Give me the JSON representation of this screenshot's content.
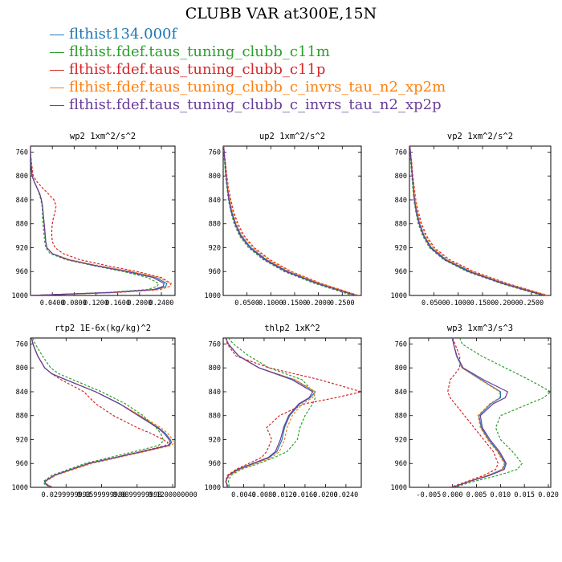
{
  "title": "CLUBB VAR at300E,15N",
  "series_legend": [
    {
      "name": "flthist134.000f",
      "color": "#1f77b4"
    },
    {
      "name": "flthist.fdef.taus_tuning_clubb_c11m",
      "color": "#2ca02c"
    },
    {
      "name": "flthist.fdef.taus_tuning_clubb_c11p",
      "color": "#d62728"
    },
    {
      "name": "flthist.fdef.taus_tuning_clubb_c_invrs_tau_n2_xp2m",
      "color": "#ff7f0e"
    },
    {
      "name": "flthist.fdef.taus_tuning_clubb_c_invrs_tau_n2_xp2p",
      "color": "#6a3d9a"
    }
  ],
  "chart_data": [
    {
      "type": "line",
      "title": "wp2  1xm^2/s^2",
      "ylim": [
        1000,
        750
      ],
      "y_ticks": [
        "760",
        "800",
        "840",
        "880",
        "920",
        "960",
        "1000"
      ],
      "xlim": [
        0,
        0.265
      ],
      "x_ticks": [
        0.04,
        0.08,
        0.12,
        0.16,
        0.2,
        0.24
      ],
      "x_tick_labels": [
        "0.0400",
        "0.0800",
        "0.1200",
        "0.1600",
        "0.2000",
        "0.2400"
      ],
      "y": [
        750,
        760,
        780,
        800,
        810,
        820,
        830,
        840,
        850,
        860,
        870,
        880,
        890,
        900,
        910,
        920,
        930,
        940,
        950,
        960,
        970,
        980,
        985,
        990,
        995,
        1000
      ],
      "series": [
        {
          "name": "flthist134.000f",
          "style": "solid",
          "x": [
            0.0,
            0.0,
            0.001,
            0.003,
            0.007,
            0.012,
            0.017,
            0.02,
            0.022,
            0.023,
            0.024,
            0.025,
            0.026,
            0.027,
            0.028,
            0.03,
            0.04,
            0.07,
            0.12,
            0.18,
            0.23,
            0.25,
            0.248,
            0.23,
            0.15,
            0.0
          ]
        },
        {
          "name": "flthist.fdef.taus_tuning_clubb_c11m",
          "style": "dashed",
          "x": [
            0.0,
            0.0,
            0.001,
            0.003,
            0.007,
            0.012,
            0.016,
            0.019,
            0.021,
            0.022,
            0.022,
            0.023,
            0.024,
            0.025,
            0.026,
            0.028,
            0.036,
            0.065,
            0.115,
            0.17,
            0.215,
            0.235,
            0.232,
            0.215,
            0.14,
            0.0
          ]
        },
        {
          "name": "flthist.fdef.taus_tuning_clubb_c11p",
          "style": "dashed",
          "x": [
            0.0,
            0.0,
            0.002,
            0.005,
            0.012,
            0.022,
            0.033,
            0.043,
            0.047,
            0.045,
            0.042,
            0.04,
            0.039,
            0.039,
            0.04,
            0.045,
            0.06,
            0.09,
            0.14,
            0.195,
            0.24,
            0.258,
            0.255,
            0.238,
            0.16,
            0.0
          ]
        },
        {
          "name": "flthist.fdef.taus_tuning_clubb_c_invrs_tau_n2_xp2m",
          "style": "dashed",
          "x": [
            0.0,
            0.0,
            0.001,
            0.003,
            0.007,
            0.012,
            0.017,
            0.02,
            0.022,
            0.023,
            0.024,
            0.025,
            0.026,
            0.027,
            0.028,
            0.03,
            0.04,
            0.072,
            0.125,
            0.185,
            0.235,
            0.257,
            0.255,
            0.236,
            0.155,
            0.0
          ]
        },
        {
          "name": "flthist.fdef.taus_tuning_clubb_c_invrs_tau_n2_xp2p",
          "style": "solid",
          "x": [
            0.0,
            0.0,
            0.001,
            0.003,
            0.007,
            0.012,
            0.017,
            0.02,
            0.022,
            0.023,
            0.024,
            0.025,
            0.026,
            0.027,
            0.028,
            0.03,
            0.04,
            0.068,
            0.118,
            0.176,
            0.225,
            0.245,
            0.243,
            0.226,
            0.148,
            0.0
          ]
        }
      ]
    },
    {
      "type": "line",
      "title": "up2  1xm^2/s^2",
      "ylim": [
        1000,
        750
      ],
      "y_ticks": [
        "760",
        "800",
        "840",
        "880",
        "920",
        "960",
        "1000"
      ],
      "xlim": [
        0,
        0.29
      ],
      "x_ticks": [
        0.05,
        0.1,
        0.15,
        0.2,
        0.25
      ],
      "x_tick_labels": [
        "0.0500",
        "0.1000",
        "0.1500",
        "0.2000",
        "0.2500"
      ],
      "y": [
        750,
        760,
        780,
        800,
        820,
        840,
        860,
        880,
        900,
        920,
        940,
        960,
        980,
        1000
      ],
      "series": [
        {
          "name": "flthist134.000f",
          "style": "solid",
          "x": [
            0.001,
            0.002,
            0.004,
            0.006,
            0.009,
            0.013,
            0.018,
            0.026,
            0.038,
            0.058,
            0.09,
            0.135,
            0.2,
            0.28
          ]
        },
        {
          "name": "flthist.fdef.taus_tuning_clubb_c11m",
          "style": "dashed",
          "x": [
            0.001,
            0.001,
            0.003,
            0.005,
            0.008,
            0.011,
            0.016,
            0.023,
            0.034,
            0.053,
            0.084,
            0.128,
            0.192,
            0.272
          ]
        },
        {
          "name": "flthist.fdef.taus_tuning_clubb_c11p",
          "style": "dashed",
          "x": [
            0.001,
            0.002,
            0.005,
            0.008,
            0.011,
            0.016,
            0.022,
            0.031,
            0.044,
            0.065,
            0.098,
            0.143,
            0.206,
            0.284
          ]
        },
        {
          "name": "flthist.fdef.taus_tuning_clubb_c_invrs_tau_n2_xp2m",
          "style": "dashed",
          "x": [
            0.001,
            0.002,
            0.004,
            0.007,
            0.01,
            0.014,
            0.02,
            0.028,
            0.041,
            0.062,
            0.094,
            0.14,
            0.204,
            0.284
          ]
        },
        {
          "name": "flthist.fdef.taus_tuning_clubb_c_invrs_tau_n2_xp2p",
          "style": "solid",
          "x": [
            0.001,
            0.002,
            0.004,
            0.006,
            0.009,
            0.012,
            0.017,
            0.025,
            0.036,
            0.056,
            0.087,
            0.132,
            0.197,
            0.278
          ]
        }
      ]
    },
    {
      "type": "line",
      "title": "vp2  1xm^2/s^2",
      "ylim": [
        1000,
        750
      ],
      "y_ticks": [
        "760",
        "800",
        "840",
        "880",
        "920",
        "960",
        "1000"
      ],
      "xlim": [
        0,
        0.29
      ],
      "x_ticks": [
        0.05,
        0.1,
        0.15,
        0.2,
        0.25
      ],
      "x_tick_labels": [
        "0.0500",
        "0.1000",
        "0.1500",
        "0.2000",
        "0.2500"
      ],
      "y": [
        750,
        760,
        780,
        800,
        820,
        840,
        860,
        880,
        900,
        920,
        940,
        960,
        980,
        1000
      ],
      "series": [
        {
          "name": "flthist134.000f",
          "style": "solid",
          "x": [
            0.001,
            0.002,
            0.004,
            0.006,
            0.008,
            0.011,
            0.015,
            0.021,
            0.03,
            0.045,
            0.075,
            0.125,
            0.195,
            0.28
          ]
        },
        {
          "name": "flthist.fdef.taus_tuning_clubb_c11m",
          "style": "dashed",
          "x": [
            0.001,
            0.001,
            0.003,
            0.005,
            0.007,
            0.009,
            0.013,
            0.018,
            0.027,
            0.041,
            0.07,
            0.118,
            0.188,
            0.272
          ]
        },
        {
          "name": "flthist.fdef.taus_tuning_clubb_c11p",
          "style": "dashed",
          "x": [
            0.001,
            0.002,
            0.005,
            0.007,
            0.01,
            0.013,
            0.018,
            0.025,
            0.035,
            0.051,
            0.082,
            0.132,
            0.201,
            0.284
          ]
        },
        {
          "name": "flthist.fdef.taus_tuning_clubb_c_invrs_tau_n2_xp2m",
          "style": "dashed",
          "x": [
            0.001,
            0.002,
            0.004,
            0.006,
            0.009,
            0.012,
            0.016,
            0.023,
            0.033,
            0.048,
            0.078,
            0.128,
            0.198,
            0.284
          ]
        },
        {
          "name": "flthist.fdef.taus_tuning_clubb_c_invrs_tau_n2_xp2p",
          "style": "solid",
          "x": [
            0.001,
            0.002,
            0.004,
            0.006,
            0.008,
            0.01,
            0.014,
            0.02,
            0.029,
            0.043,
            0.072,
            0.121,
            0.191,
            0.276
          ]
        }
      ]
    },
    {
      "type": "line",
      "title": "rtp2  1E-6x(kg/kg)^2",
      "ylim": [
        1000,
        750
      ],
      "y_ticks": [
        "760",
        "800",
        "840",
        "880",
        "920",
        "960",
        "1000"
      ],
      "xlim": [
        0,
        0.122
      ],
      "x_ticks": [
        0.03,
        0.06,
        0.09,
        0.12
      ],
      "x_tick_labels": [
        "0.0299999993",
        "0.0599999986",
        "0.0899999998",
        "0.1200000000"
      ],
      "y": [
        750,
        760,
        780,
        800,
        810,
        820,
        840,
        860,
        880,
        900,
        910,
        920,
        925,
        930,
        940,
        960,
        980,
        990,
        995,
        1000
      ],
      "series": [
        {
          "name": "flthist134.000f",
          "style": "solid",
          "x": [
            0.001,
            0.002,
            0.006,
            0.012,
            0.018,
            0.03,
            0.055,
            0.075,
            0.092,
            0.108,
            0.114,
            0.118,
            0.119,
            0.117,
            0.095,
            0.05,
            0.02,
            0.012,
            0.013,
            0.018
          ]
        },
        {
          "name": "flthist.fdef.taus_tuning_clubb_c11m",
          "style": "dashed",
          "x": [
            0.002,
            0.004,
            0.01,
            0.017,
            0.024,
            0.036,
            0.06,
            0.08,
            0.095,
            0.106,
            0.11,
            0.112,
            0.111,
            0.108,
            0.088,
            0.046,
            0.018,
            0.011,
            0.012,
            0.017
          ]
        },
        {
          "name": "flthist.fdef.taus_tuning_clubb_c11p",
          "style": "dashed",
          "x": [
            0.001,
            0.002,
            0.006,
            0.012,
            0.018,
            0.026,
            0.045,
            0.055,
            0.07,
            0.09,
            0.102,
            0.112,
            0.116,
            0.114,
            0.093,
            0.05,
            0.021,
            0.013,
            0.014,
            0.019
          ]
        },
        {
          "name": "flthist.fdef.taus_tuning_clubb_c_invrs_tau_n2_xp2m",
          "style": "dashed",
          "x": [
            0.001,
            0.002,
            0.006,
            0.012,
            0.018,
            0.03,
            0.055,
            0.075,
            0.093,
            0.11,
            0.116,
            0.12,
            0.121,
            0.119,
            0.097,
            0.052,
            0.021,
            0.013,
            0.014,
            0.019
          ]
        },
        {
          "name": "flthist.fdef.taus_tuning_clubb_c_invrs_tau_n2_xp2p",
          "style": "solid",
          "x": [
            0.001,
            0.002,
            0.006,
            0.012,
            0.018,
            0.03,
            0.055,
            0.075,
            0.091,
            0.107,
            0.113,
            0.117,
            0.118,
            0.116,
            0.094,
            0.049,
            0.02,
            0.012,
            0.013,
            0.018
          ]
        }
      ]
    },
    {
      "type": "line",
      "title": "thlp2  1xK^2",
      "ylim": [
        1000,
        750
      ],
      "y_ticks": [
        "760",
        "800",
        "840",
        "880",
        "920",
        "960",
        "1000"
      ],
      "xlim": [
        0,
        0.027
      ],
      "x_ticks": [
        0.004,
        0.008,
        0.012,
        0.016,
        0.02,
        0.024
      ],
      "x_tick_labels": [
        "0.0040",
        "0.0080",
        "0.0120",
        "0.0160",
        "0.0200",
        "0.0240"
      ],
      "y": [
        750,
        760,
        780,
        800,
        820,
        840,
        850,
        860,
        880,
        900,
        920,
        940,
        950,
        960,
        970,
        980,
        990,
        1000
      ],
      "series": [
        {
          "name": "flthist134.000f",
          "style": "solid",
          "x": [
            0.0005,
            0.001,
            0.003,
            0.007,
            0.014,
            0.018,
            0.017,
            0.015,
            0.013,
            0.012,
            0.0115,
            0.0105,
            0.009,
            0.006,
            0.003,
            0.001,
            0.0005,
            0.001
          ]
        },
        {
          "name": "flthist.fdef.taus_tuning_clubb_c11m",
          "style": "dashed",
          "x": [
            0.001,
            0.002,
            0.005,
            0.009,
            0.0155,
            0.0175,
            0.018,
            0.0175,
            0.016,
            0.015,
            0.0145,
            0.0125,
            0.01,
            0.007,
            0.0035,
            0.0015,
            0.001,
            0.0012
          ]
        },
        {
          "name": "flthist.fdef.taus_tuning_clubb_c11p",
          "style": "dashed",
          "x": [
            0.0005,
            0.0008,
            0.0025,
            0.009,
            0.019,
            0.027,
            0.022,
            0.016,
            0.011,
            0.0085,
            0.0095,
            0.0085,
            0.0075,
            0.005,
            0.0025,
            0.0008,
            0.0005,
            0.0008
          ]
        },
        {
          "name": "flthist.fdef.taus_tuning_clubb_c_invrs_tau_n2_xp2m",
          "style": "dashed",
          "x": [
            0.0005,
            0.001,
            0.003,
            0.007,
            0.014,
            0.018,
            0.0175,
            0.0155,
            0.0135,
            0.0125,
            0.012,
            0.011,
            0.0095,
            0.0065,
            0.0032,
            0.0012,
            0.0006,
            0.001
          ]
        },
        {
          "name": "flthist.fdef.taus_tuning_clubb_c_invrs_tau_n2_xp2p",
          "style": "solid",
          "x": [
            0.0005,
            0.001,
            0.003,
            0.007,
            0.0135,
            0.0175,
            0.0168,
            0.0148,
            0.0128,
            0.0118,
            0.0112,
            0.0102,
            0.0088,
            0.0058,
            0.0028,
            0.001,
            0.0005,
            0.0009
          ]
        }
      ]
    },
    {
      "type": "line",
      "title": "wp3  1xm^3/s^3",
      "ylim": [
        1000,
        750
      ],
      "y_ticks": [
        "760",
        "800",
        "840",
        "880",
        "920",
        "960",
        "1000"
      ],
      "xlim": [
        -0.009,
        0.0205
      ],
      "x_ticks": [
        -0.005,
        0.0,
        0.005,
        0.01,
        0.015,
        0.02
      ],
      "x_tick_labels": [
        "-0.005",
        "0.000",
        "0.005",
        "0.010",
        "0.015",
        "0.020"
      ],
      "y": [
        750,
        760,
        780,
        800,
        820,
        840,
        850,
        860,
        880,
        900,
        920,
        940,
        960,
        970,
        980,
        990,
        1000
      ],
      "series": [
        {
          "name": "flthist134.000f",
          "style": "solid",
          "x": [
            0.0,
            0.0002,
            0.0008,
            0.002,
            0.006,
            0.01,
            0.01,
            0.008,
            0.0055,
            0.006,
            0.0075,
            0.0095,
            0.011,
            0.0105,
            0.0075,
            0.0035,
            0.0
          ]
        },
        {
          "name": "flthist.fdef.taus_tuning_clubb_c11m",
          "style": "dashed",
          "x": [
            0.0015,
            0.002,
            0.006,
            0.011,
            0.016,
            0.0205,
            0.019,
            0.016,
            0.01,
            0.009,
            0.01,
            0.0125,
            0.0145,
            0.0135,
            0.0095,
            0.0045,
            0.0003
          ]
        },
        {
          "name": "flthist.fdef.taus_tuning_clubb_c11p",
          "style": "dashed",
          "x": [
            0.0,
            0.0005,
            0.0015,
            0.0015,
            -0.0005,
            -0.001,
            -0.0005,
            0.0005,
            0.0025,
            0.0045,
            0.0065,
            0.0085,
            0.0095,
            0.009,
            0.0065,
            0.003,
            -0.0005
          ]
        },
        {
          "name": "flthist.fdef.taus_tuning_clubb_c_invrs_tau_n2_xp2m",
          "style": "dashed",
          "x": [
            0.0,
            0.0002,
            0.0008,
            0.002,
            0.0058,
            0.0098,
            0.0098,
            0.0078,
            0.0053,
            0.0058,
            0.0073,
            0.0093,
            0.0108,
            0.0103,
            0.0073,
            0.0033,
            0.0
          ]
        },
        {
          "name": "flthist.fdef.taus_tuning_clubb_c_invrs_tau_n2_xp2p",
          "style": "solid",
          "x": [
            0.0,
            0.0002,
            0.0009,
            0.0022,
            0.0065,
            0.0115,
            0.011,
            0.0085,
            0.0058,
            0.0062,
            0.0078,
            0.0098,
            0.0112,
            0.0108,
            0.0078,
            0.0036,
            0.0
          ]
        }
      ]
    }
  ]
}
